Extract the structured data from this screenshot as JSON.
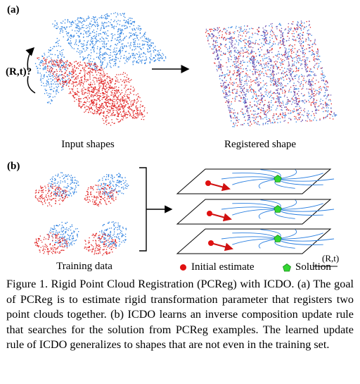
{
  "figure": {
    "panel_a_label": "(a)",
    "panel_b_label": "(b)",
    "transform_label": "(R,t)?",
    "input_shapes_label": "Input shapes",
    "registered_shape_label": "Registered shape",
    "training_data_label": "Training data",
    "axis_label": "(R,t)",
    "legend": {
      "initial_estimate": "Initial estimate",
      "solution": "Solution"
    },
    "colors": {
      "red_cloud": "#e02020",
      "blue_cloud": "#2a7fe0",
      "registered_purple": "#6a4fb0",
      "flow_lines": "#2a7fe0",
      "solution_marker": "#33d633",
      "initial_marker": "#e01010"
    }
  },
  "caption": {
    "text": "Figure 1. Rigid Point Cloud Registration (PCReg) with ICDO. (a) The goal of PCReg is to estimate rigid transformation parameter that registers two point clouds together. (b) ICDO learns an inverse composition update rule that searches for the solution from PCReg examples. The learned update rule of ICDO generalizes to shapes that are not even in the training set."
  }
}
